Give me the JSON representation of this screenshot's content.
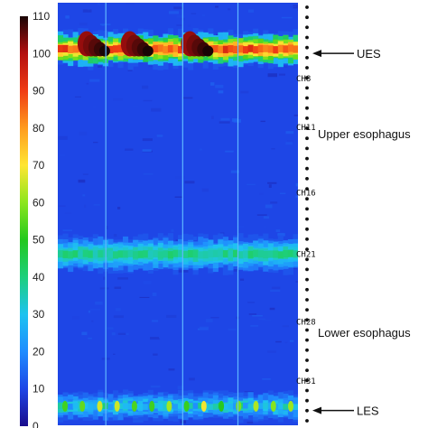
{
  "chart_data": {
    "type": "heatmap",
    "title": "",
    "xlabel": "",
    "ylabel": "",
    "colorbar": {
      "range": [
        0,
        110
      ],
      "ticks": [
        0,
        10,
        20,
        30,
        40,
        50,
        60,
        70,
        80,
        90,
        100,
        110
      ],
      "tick_labels": [
        "0",
        "10",
        "20",
        "30",
        "40",
        "50",
        "60",
        "70",
        "80",
        "90",
        "100",
        "110"
      ],
      "colors": [
        "#1a0c8c",
        "#1e46e6",
        "#1f8cff",
        "#1ec3f0",
        "#1ecf7c",
        "#23c81e",
        "#8ce61e",
        "#ffe632",
        "#ff9b1e",
        "#f03c14",
        "#b40f0f",
        "#190505"
      ],
      "placement": "left"
    },
    "channels": [
      {
        "label": "CH8",
        "level": 0.18
      },
      {
        "label": "CH11",
        "level": 0.295
      },
      {
        "label": "CH16",
        "level": 0.45
      },
      {
        "label": "CH21",
        "level": 0.595
      },
      {
        "label": "CH28",
        "level": 0.755
      },
      {
        "label": "CH31",
        "level": 0.895
      }
    ],
    "annotations": [
      {
        "text": "UES",
        "arrow": true,
        "level": 0.12
      },
      {
        "text": "Upper esophagus",
        "arrow": false,
        "level": 0.31
      },
      {
        "text": "Lower esophagus",
        "arrow": false,
        "level": 0.78
      },
      {
        "text": "LES",
        "arrow": true,
        "level": 0.965
      }
    ],
    "bands": [
      {
        "region": "UES",
        "center": 0.11,
        "width": 0.05,
        "mean_value": 88,
        "variation": 12
      },
      {
        "region": "mid-esophagus",
        "center": 0.595,
        "width": 0.05,
        "mean_value": 38,
        "variation": 8
      },
      {
        "region": "LES",
        "center": 0.955,
        "width": 0.04,
        "mean_value": 30,
        "variation": 22
      }
    ],
    "background_value": 6,
    "sensor_dots": 42
  }
}
